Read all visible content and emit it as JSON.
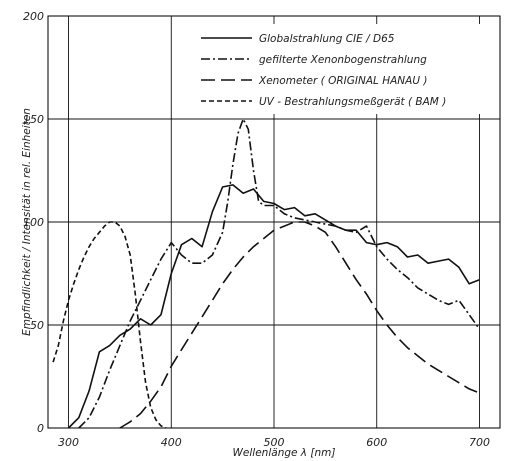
{
  "chart_data": {
    "type": "line",
    "title": "",
    "xlabel": "Wellenlänge λ [nm]",
    "ylabel": "Empfindlichkeit / Intensität in rel. Einheiten",
    "xlim": [
      280,
      720
    ],
    "ylim": [
      0,
      200
    ],
    "x_ticks": [
      300,
      400,
      500,
      600,
      700
    ],
    "y_ticks": [
      0,
      50,
      100,
      150,
      200
    ],
    "x_tick_labels": [
      "300",
      "400",
      "500",
      "600",
      "700"
    ],
    "y_tick_labels": [
      "0",
      "50",
      "100",
      "150",
      "200"
    ],
    "grid": true,
    "legend_position": "top-right",
    "color": "#111111",
    "series": [
      {
        "name": "Globalstrahlung CIE / D65",
        "dash": "solid",
        "points": [
          [
            300,
            0
          ],
          [
            310,
            5
          ],
          [
            320,
            18
          ],
          [
            330,
            37
          ],
          [
            340,
            40
          ],
          [
            350,
            45
          ],
          [
            360,
            48
          ],
          [
            370,
            53
          ],
          [
            380,
            50
          ],
          [
            390,
            55
          ],
          [
            400,
            75
          ],
          [
            410,
            89
          ],
          [
            420,
            92
          ],
          [
            430,
            88
          ],
          [
            440,
            105
          ],
          [
            450,
            117
          ],
          [
            460,
            118
          ],
          [
            470,
            114
          ],
          [
            480,
            116
          ],
          [
            490,
            110
          ],
          [
            500,
            109
          ],
          [
            510,
            106
          ],
          [
            520,
            107
          ],
          [
            530,
            103
          ],
          [
            540,
            104
          ],
          [
            550,
            101
          ],
          [
            560,
            98
          ],
          [
            570,
            96
          ],
          [
            580,
            96
          ],
          [
            590,
            90
          ],
          [
            600,
            89
          ],
          [
            610,
            90
          ],
          [
            620,
            88
          ],
          [
            630,
            83
          ],
          [
            640,
            84
          ],
          [
            650,
            80
          ],
          [
            660,
            81
          ],
          [
            670,
            82
          ],
          [
            680,
            78
          ],
          [
            690,
            70
          ],
          [
            700,
            72
          ]
        ]
      },
      {
        "name": "gefilterte Xenonbogenstrahlung",
        "dash": "dash-dot",
        "points": [
          [
            310,
            0
          ],
          [
            320,
            5
          ],
          [
            330,
            15
          ],
          [
            340,
            28
          ],
          [
            350,
            40
          ],
          [
            360,
            52
          ],
          [
            370,
            62
          ],
          [
            380,
            72
          ],
          [
            390,
            82
          ],
          [
            400,
            90
          ],
          [
            410,
            84
          ],
          [
            420,
            80
          ],
          [
            430,
            80
          ],
          [
            440,
            84
          ],
          [
            450,
            95
          ],
          [
            455,
            110
          ],
          [
            460,
            128
          ],
          [
            465,
            143
          ],
          [
            470,
            150
          ],
          [
            475,
            145
          ],
          [
            480,
            125
          ],
          [
            485,
            110
          ],
          [
            490,
            108
          ],
          [
            500,
            108
          ],
          [
            510,
            104
          ],
          [
            520,
            102
          ],
          [
            530,
            101
          ],
          [
            540,
            100
          ],
          [
            550,
            99
          ],
          [
            560,
            98
          ],
          [
            570,
            96
          ],
          [
            580,
            95
          ],
          [
            590,
            98
          ],
          [
            600,
            88
          ],
          [
            610,
            82
          ],
          [
            620,
            77
          ],
          [
            630,
            73
          ],
          [
            640,
            68
          ],
          [
            650,
            65
          ],
          [
            660,
            62
          ],
          [
            670,
            60
          ],
          [
            680,
            62
          ],
          [
            690,
            55
          ],
          [
            700,
            48
          ]
        ]
      },
      {
        "name": "Xenometer ( ORIGINAL HANAU )",
        "dash": "long-dash",
        "points": [
          [
            350,
            0
          ],
          [
            360,
            3
          ],
          [
            370,
            7
          ],
          [
            380,
            13
          ],
          [
            390,
            20
          ],
          [
            400,
            30
          ],
          [
            410,
            38
          ],
          [
            420,
            46
          ],
          [
            430,
            54
          ],
          [
            440,
            62
          ],
          [
            450,
            70
          ],
          [
            460,
            77
          ],
          [
            470,
            83
          ],
          [
            480,
            88
          ],
          [
            490,
            92
          ],
          [
            500,
            96
          ],
          [
            510,
            98
          ],
          [
            520,
            100
          ],
          [
            530,
            100
          ],
          [
            540,
            98
          ],
          [
            550,
            95
          ],
          [
            560,
            88
          ],
          [
            570,
            80
          ],
          [
            580,
            72
          ],
          [
            590,
            65
          ],
          [
            600,
            57
          ],
          [
            610,
            50
          ],
          [
            620,
            44
          ],
          [
            630,
            39
          ],
          [
            640,
            35
          ],
          [
            650,
            31
          ],
          [
            660,
            28
          ],
          [
            670,
            25
          ],
          [
            680,
            22
          ],
          [
            690,
            19
          ],
          [
            700,
            17
          ]
        ]
      },
      {
        "name": "UV - Bestrahlungsmeßgerät ( BAM )",
        "dash": "short-dash",
        "points": [
          [
            285,
            32
          ],
          [
            290,
            40
          ],
          [
            295,
            52
          ],
          [
            300,
            62
          ],
          [
            305,
            70
          ],
          [
            310,
            77
          ],
          [
            315,
            83
          ],
          [
            320,
            88
          ],
          [
            325,
            92
          ],
          [
            330,
            95
          ],
          [
            335,
            98
          ],
          [
            340,
            100
          ],
          [
            345,
            100
          ],
          [
            350,
            98
          ],
          [
            355,
            93
          ],
          [
            360,
            84
          ],
          [
            365,
            65
          ],
          [
            370,
            42
          ],
          [
            375,
            22
          ],
          [
            380,
            10
          ],
          [
            385,
            4
          ],
          [
            390,
            1
          ],
          [
            395,
            0
          ]
        ]
      }
    ]
  }
}
